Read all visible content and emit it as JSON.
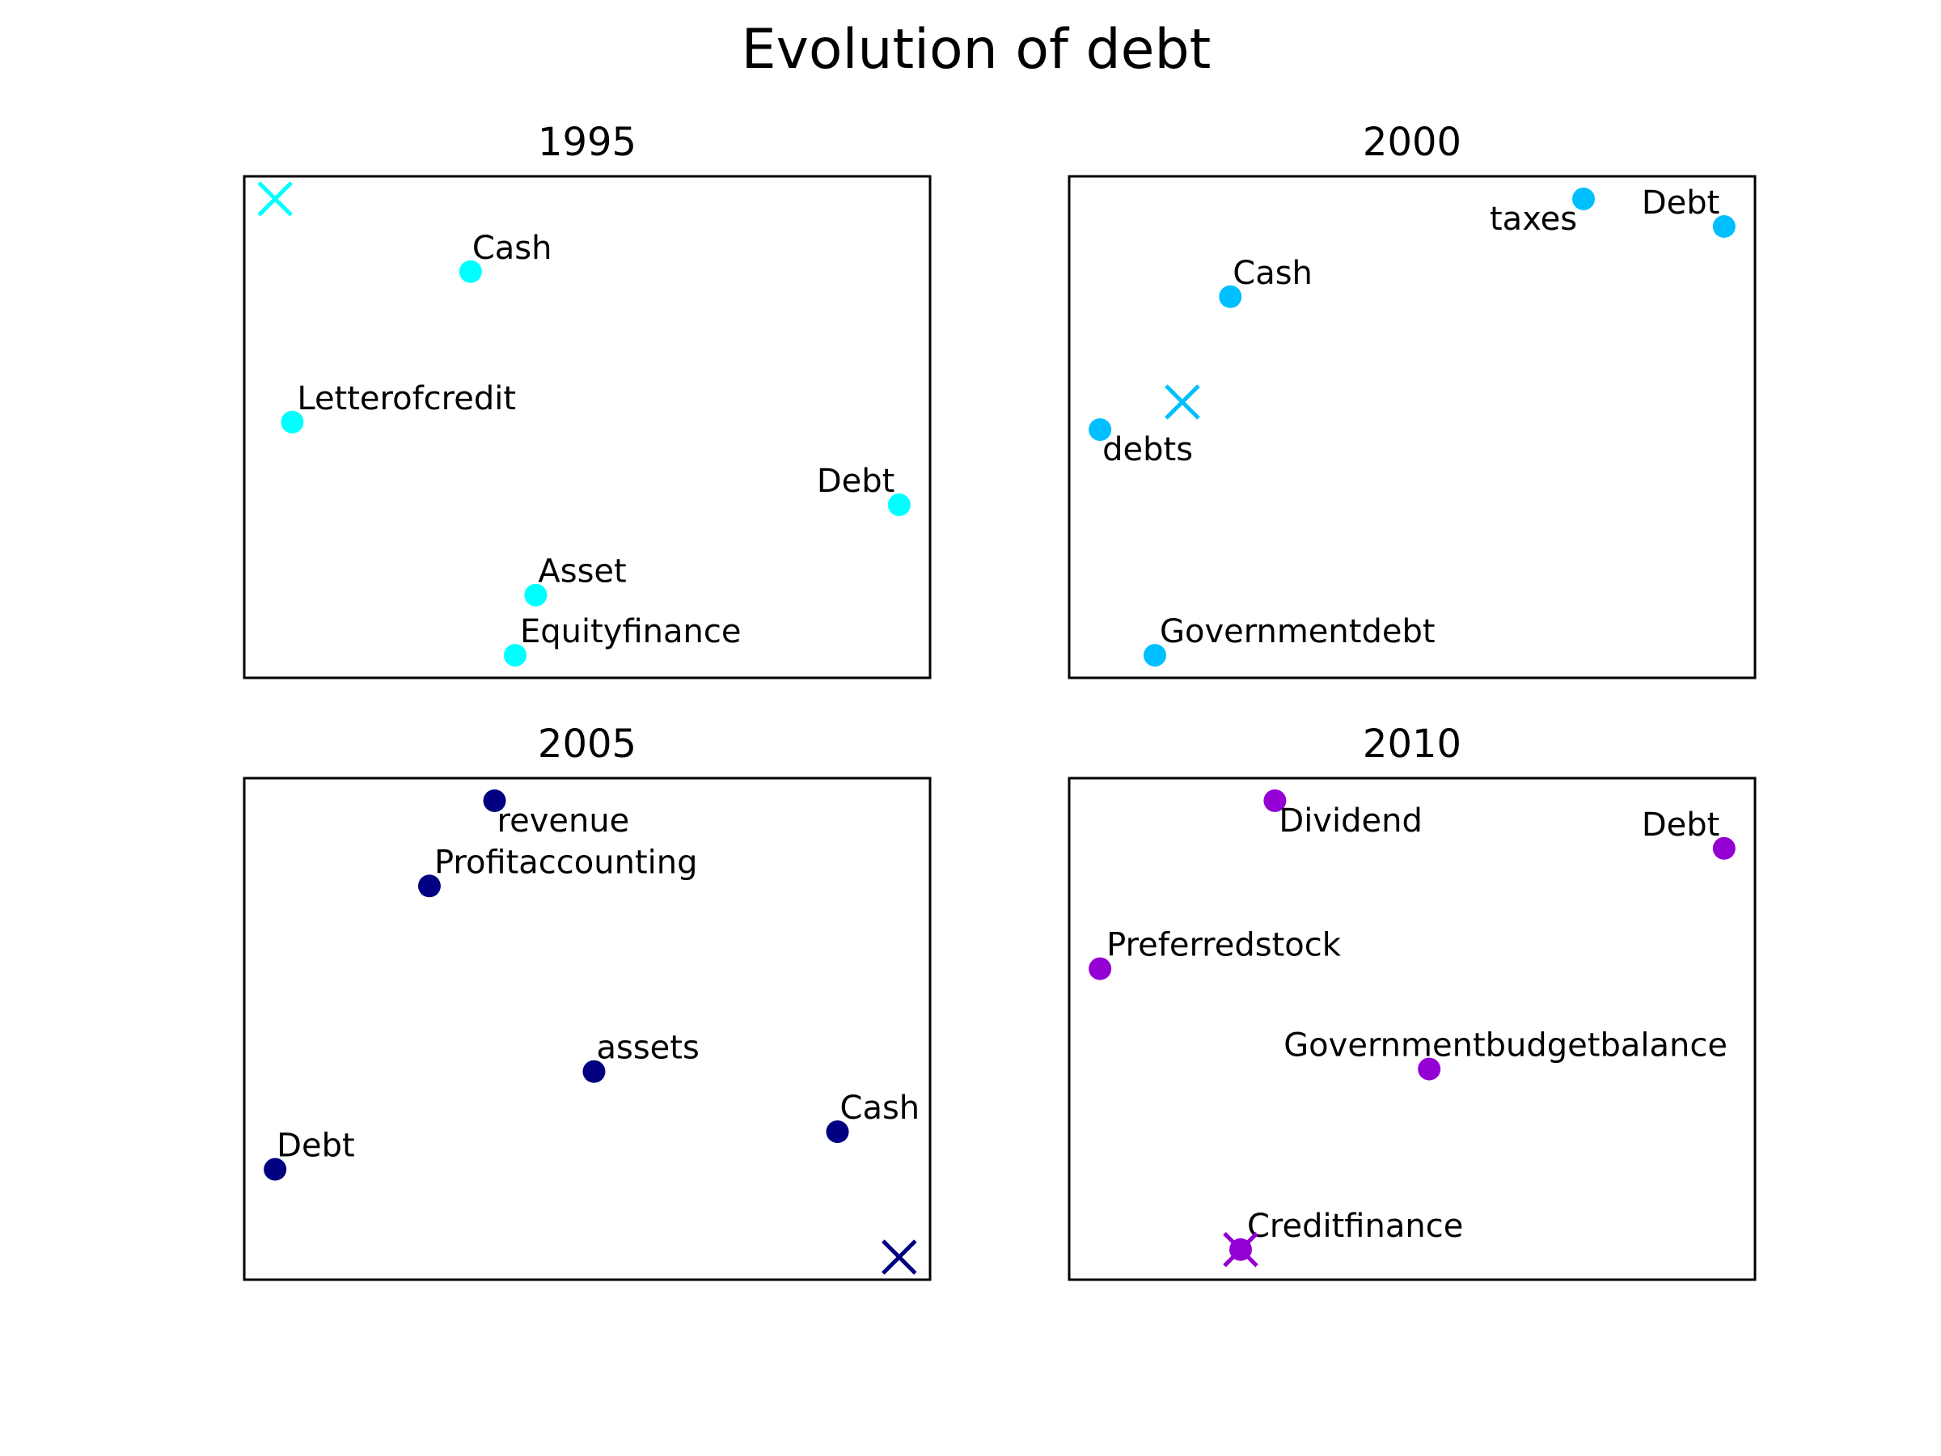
{
  "title": "Evolution of debt",
  "chart_data": [
    {
      "type": "scatter",
      "title": "1995",
      "color": "#00ffff",
      "xlim": [
        0,
        100
      ],
      "ylim": [
        0,
        100
      ],
      "grid": false,
      "points": [
        {
          "label": "Cash",
          "x": 33,
          "y": 81
        },
        {
          "label": "Letterofcredit",
          "x": 7,
          "y": 51
        },
        {
          "label": "Debt",
          "x": 95.5,
          "y": 34.5
        },
        {
          "label": "Asset",
          "x": 42.5,
          "y": 16.5
        },
        {
          "label": "Equityfinance",
          "x": 39.5,
          "y": 4.5
        }
      ],
      "marker_x": {
        "x": 4.5,
        "y": 95.5
      }
    },
    {
      "type": "scatter",
      "title": "2000",
      "color": "#00bfff",
      "xlim": [
        0,
        100
      ],
      "ylim": [
        0,
        100
      ],
      "grid": false,
      "points": [
        {
          "label": "taxes",
          "x": 75,
          "y": 95.5
        },
        {
          "label": "Debt",
          "x": 95.5,
          "y": 90
        },
        {
          "label": "Cash",
          "x": 23.5,
          "y": 76
        },
        {
          "label": "debts",
          "x": 4.5,
          "y": 49.5
        },
        {
          "label": "Governmentdebt",
          "x": 12.5,
          "y": 4.5
        }
      ],
      "marker_x": {
        "x": 16.5,
        "y": 55
      }
    },
    {
      "type": "scatter",
      "title": "2005",
      "color": "#000080",
      "xlim": [
        0,
        100
      ],
      "ylim": [
        0,
        100
      ],
      "grid": false,
      "points": [
        {
          "label": "revenue",
          "x": 36.5,
          "y": 95.5
        },
        {
          "label": "Profitaccounting",
          "x": 27,
          "y": 78.5
        },
        {
          "label": "assets",
          "x": 51,
          "y": 41.5
        },
        {
          "label": "Cash",
          "x": 86.5,
          "y": 29.5
        },
        {
          "label": "Debt",
          "x": 4.5,
          "y": 22
        }
      ],
      "marker_x": {
        "x": 95.5,
        "y": 4.5
      }
    },
    {
      "type": "scatter",
      "title": "2010",
      "color": "#9400d3",
      "xlim": [
        0,
        100
      ],
      "ylim": [
        0,
        100
      ],
      "grid": false,
      "points": [
        {
          "label": "Dividend",
          "x": 30,
          "y": 95.5
        },
        {
          "label": "Debt",
          "x": 95.5,
          "y": 86
        },
        {
          "label": "Preferredstock",
          "x": 4.5,
          "y": 62
        },
        {
          "label": "Governmentbudgetbalance",
          "x": 52.5,
          "y": 42
        },
        {
          "label": "Creditfinance",
          "x": 25,
          "y": 6
        }
      ],
      "marker_x": {
        "x": 25,
        "y": 6
      }
    }
  ]
}
